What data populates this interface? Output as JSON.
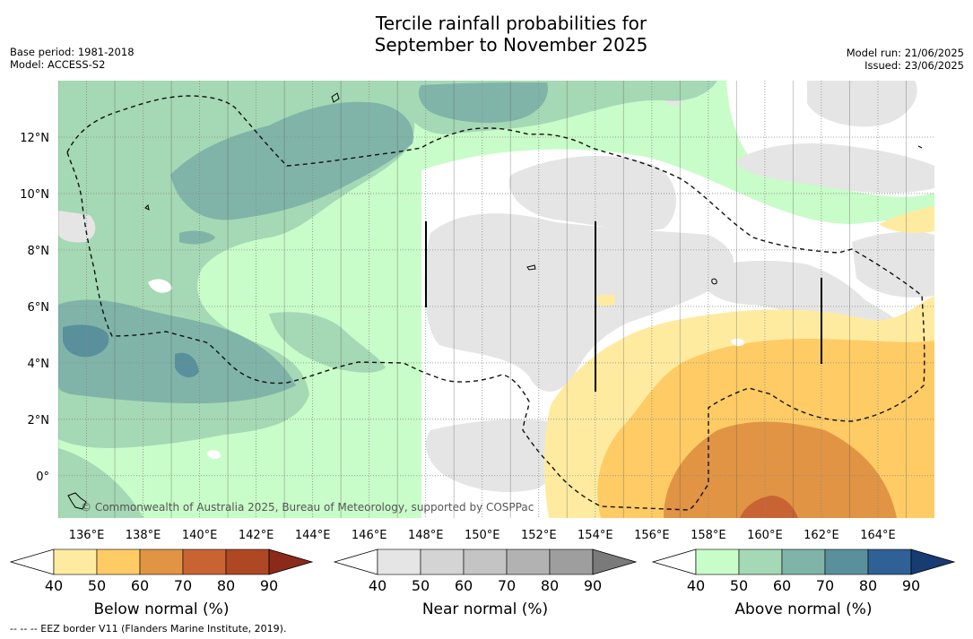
{
  "title": {
    "line1": "Tercile rainfall probabilities for",
    "line2": "September to November 2025"
  },
  "meta_left": {
    "base_period": "Base period: 1981-2018",
    "model": "Model: ACCESS-S2"
  },
  "meta_right": {
    "model_run": "Model run: 21/06/2025",
    "issued": "Issued: 23/06/2025"
  },
  "map": {
    "lat_labels": [
      "12°N",
      "10°N",
      "8°N",
      "6°N",
      "4°N",
      "2°N",
      "0°"
    ],
    "lon_labels": [
      "136°E",
      "138°E",
      "140°E",
      "142°E",
      "144°E",
      "146°E",
      "148°E",
      "150°E",
      "152°E",
      "154°E",
      "156°E",
      "158°E",
      "160°E",
      "162°E",
      "164°E"
    ],
    "copyright": "© Commonwealth of Australia 2025, Bureau of Meteorology, supported by COSPPac",
    "region": {
      "lon_min": 135,
      "lon_max": 166,
      "lat_min": -1.5,
      "lat_max": 14
    }
  },
  "colorbars": {
    "below": {
      "title": "Below normal (%)",
      "ticks": [
        "40",
        "50",
        "60",
        "70",
        "80",
        "90"
      ],
      "colors": [
        "#ffffff",
        "#ffeba0",
        "#fecb65",
        "#e09444",
        "#ca6333",
        "#ae4724",
        "#8b2a1a"
      ]
    },
    "near": {
      "title": "Near normal (%)",
      "ticks": [
        "40",
        "50",
        "60",
        "70",
        "80",
        "90"
      ],
      "colors": [
        "#ffffff",
        "#e5e5e5",
        "#d4d4d4",
        "#c4c4c4",
        "#b2b2b2",
        "#9e9e9e",
        "#7a7a7a"
      ]
    },
    "above": {
      "title": "Above normal (%)",
      "ticks": [
        "40",
        "50",
        "60",
        "70",
        "80",
        "90"
      ],
      "colors": [
        "#ffffff",
        "#c8fcc8",
        "#a5d8b4",
        "#80b4a8",
        "#5a909c",
        "#2f6096",
        "#173c72"
      ]
    }
  },
  "footer": "--  --  -- EEZ border V11 (Flanders Marine Institute, 2019)."
}
